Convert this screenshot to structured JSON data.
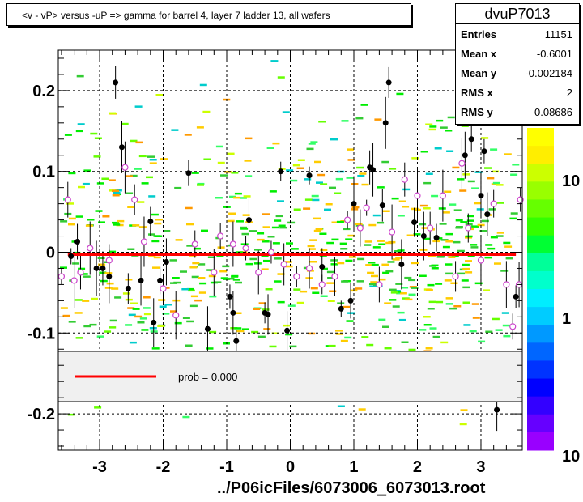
{
  "title": "<v - vP>       versus  -uP =>  gamma for barrel 4, layer 7 ladder 13, all wafers",
  "stats": {
    "name": "dvuP7013",
    "rows": [
      {
        "key": "Entries",
        "value": "11151"
      },
      {
        "key": "Mean x",
        "value": "-0.6001"
      },
      {
        "key": "Mean y",
        "value": "-0.002184"
      },
      {
        "key": "RMS x",
        "value": "2"
      },
      {
        "key": "RMS y",
        "value": "0.08686"
      }
    ]
  },
  "legend": {
    "label": "prob = 0.000",
    "line_color": "#ff0000"
  },
  "footer": "../P06icFiles/6073006_6073013.root",
  "colors": {
    "fit_line": "#ff0000",
    "black_points": "#000000",
    "open_points": "#cc44cc",
    "frame": "#000000"
  },
  "chart_data": {
    "type": "scatter",
    "title": "<v - vP>       versus  -uP =>  gamma for barrel 4, layer 7 ladder 13, all wafers",
    "xlabel": "",
    "ylabel": "",
    "xlim": [
      -3.65,
      3.65
    ],
    "ylim": [
      -0.245,
      0.25
    ],
    "grid": true,
    "legend_position": "lower-left inset",
    "x_ticks": [
      -3,
      -2,
      -1,
      0,
      1,
      2,
      3
    ],
    "x_tick_labels": [
      "-3",
      "-2",
      "-1",
      "0",
      "1",
      "2",
      "3"
    ],
    "y_ticks": [
      -0.2,
      -0.1,
      0,
      0.1,
      0.2
    ],
    "y_tick_labels": [
      "-0.2",
      "-0.1",
      "0",
      "0.1",
      "0.2"
    ],
    "colorbar_labels": [
      "10",
      "1",
      "10"
    ],
    "series": [
      {
        "kind": "black_points",
        "points": [
          [
            -3.45,
            -0.005
          ],
          [
            -3.35,
            0.013
          ],
          [
            -3.05,
            -0.02
          ],
          [
            -2.95,
            -0.02
          ],
          [
            -2.85,
            -0.03
          ],
          [
            -2.75,
            0.21
          ],
          [
            -2.65,
            0.13
          ],
          [
            -2.55,
            -0.045
          ],
          [
            -2.35,
            -0.035
          ],
          [
            -2.2,
            0.038
          ],
          [
            -2.15,
            -0.087
          ],
          [
            -2.05,
            -0.035
          ],
          [
            -1.95,
            -0.012
          ],
          [
            -1.6,
            0.098
          ],
          [
            -1.3,
            -0.095
          ],
          [
            -0.95,
            -0.055
          ],
          [
            -0.9,
            -0.075
          ],
          [
            -0.85,
            -0.11
          ],
          [
            -0.65,
            0.04
          ],
          [
            -0.4,
            -0.075
          ],
          [
            -0.35,
            -0.077
          ],
          [
            -0.15,
            0.1
          ],
          [
            -0.05,
            -0.097
          ],
          [
            0.3,
            0.095
          ],
          [
            0.5,
            -0.018
          ],
          [
            0.8,
            -0.07
          ],
          [
            0.95,
            -0.06
          ],
          [
            1.0,
            0.06
          ],
          [
            1.25,
            0.105
          ],
          [
            1.3,
            0.102
          ],
          [
            1.45,
            0.058
          ],
          [
            1.5,
            0.16
          ],
          [
            1.55,
            0.21
          ],
          [
            1.75,
            -0.015
          ],
          [
            1.95,
            0.037
          ],
          [
            2.1,
            0.02
          ],
          [
            2.3,
            0.018
          ],
          [
            2.75,
            0.12
          ],
          [
            2.85,
            0.14
          ],
          [
            3.0,
            0.07
          ],
          [
            3.05,
            0.125
          ],
          [
            3.1,
            0.047
          ],
          [
            3.55,
            -0.055
          ],
          [
            3.25,
            -0.195
          ]
        ]
      },
      {
        "kind": "open_points",
        "points": [
          [
            -3.6,
            -0.03
          ],
          [
            -3.5,
            0.065
          ],
          [
            -3.4,
            -0.035
          ],
          [
            -3.3,
            -0.025
          ],
          [
            -3.15,
            0.005
          ],
          [
            -2.85,
            -0.01
          ],
          [
            -2.6,
            0.105
          ],
          [
            -2.45,
            0.065
          ],
          [
            -2.3,
            0.013
          ],
          [
            -2.0,
            -0.045
          ],
          [
            -1.8,
            -0.078
          ],
          [
            -1.5,
            0.01
          ],
          [
            -1.2,
            -0.025
          ],
          [
            -1.1,
            0.02
          ],
          [
            -0.9,
            0.01
          ],
          [
            -0.7,
            0.005
          ],
          [
            -0.5,
            -0.025
          ],
          [
            -0.3,
            0.0
          ],
          [
            -0.1,
            -0.015
          ],
          [
            0.1,
            -0.03
          ],
          [
            0.3,
            -0.02
          ],
          [
            0.5,
            -0.04
          ],
          [
            0.7,
            -0.03
          ],
          [
            0.9,
            0.04
          ],
          [
            1.1,
            0.03
          ],
          [
            1.2,
            0.055
          ],
          [
            1.4,
            -0.04
          ],
          [
            1.6,
            0.025
          ],
          [
            1.8,
            0.09
          ],
          [
            2.0,
            0.07
          ],
          [
            2.2,
            0.03
          ],
          [
            2.4,
            0.07
          ],
          [
            2.6,
            -0.03
          ],
          [
            2.7,
            0.11
          ],
          [
            2.8,
            0.03
          ],
          [
            3.0,
            -0.01
          ],
          [
            3.2,
            0.06
          ],
          [
            3.4,
            -0.04
          ],
          [
            3.5,
            -0.092
          ],
          [
            3.6,
            -0.04
          ],
          [
            3.62,
            0.065
          ]
        ]
      }
    ],
    "fit_line": {
      "x": [
        -3.5,
        3.55
      ],
      "y": [
        -0.003,
        -0.003
      ]
    }
  }
}
